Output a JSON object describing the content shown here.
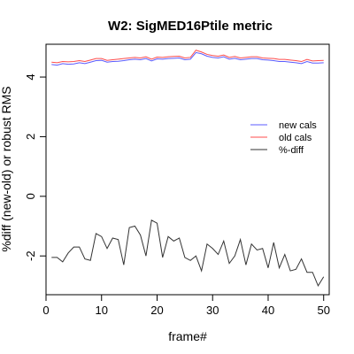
{
  "chart_data": {
    "type": "line",
    "title": "W2: SigMED16Ptile metric",
    "xlabel": "frame#",
    "ylabel": "%diff (new-old) or robust RMS",
    "xlim": [
      0,
      51
    ],
    "ylim": [
      -3.3,
      5.1
    ],
    "xticks": [
      0,
      10,
      20,
      30,
      40,
      50
    ],
    "yticks": [
      -2,
      0,
      2,
      4
    ],
    "grid": false,
    "legend_position": "right",
    "x": [
      1,
      2,
      3,
      4,
      5,
      6,
      7,
      8,
      9,
      10,
      11,
      12,
      13,
      14,
      15,
      16,
      17,
      18,
      19,
      20,
      21,
      22,
      23,
      24,
      25,
      26,
      27,
      28,
      29,
      30,
      31,
      32,
      33,
      34,
      35,
      36,
      37,
      38,
      39,
      40,
      41,
      42,
      43,
      44,
      45,
      46,
      47,
      48,
      49,
      50
    ],
    "series": [
      {
        "name": "new cals",
        "color": "#5b5bff",
        "values": [
          4.42,
          4.4,
          4.45,
          4.43,
          4.44,
          4.48,
          4.45,
          4.5,
          4.55,
          4.56,
          4.5,
          4.52,
          4.53,
          4.55,
          4.58,
          4.6,
          4.58,
          4.62,
          4.54,
          4.61,
          4.6,
          4.62,
          4.63,
          4.64,
          4.58,
          4.6,
          4.82,
          4.78,
          4.7,
          4.66,
          4.64,
          4.68,
          4.6,
          4.63,
          4.58,
          4.6,
          4.62,
          4.62,
          4.58,
          4.57,
          4.55,
          4.52,
          4.52,
          4.5,
          4.48,
          4.45,
          4.52,
          4.47,
          4.47,
          4.48
        ]
      },
      {
        "name": "old cals",
        "color": "#ff4d4d",
        "values": [
          4.5,
          4.48,
          4.52,
          4.51,
          4.52,
          4.55,
          4.52,
          4.57,
          4.62,
          4.62,
          4.56,
          4.58,
          4.6,
          4.62,
          4.64,
          4.66,
          4.64,
          4.68,
          4.6,
          4.67,
          4.66,
          4.68,
          4.69,
          4.7,
          4.64,
          4.66,
          4.9,
          4.84,
          4.76,
          4.72,
          4.7,
          4.74,
          4.66,
          4.69,
          4.64,
          4.66,
          4.68,
          4.68,
          4.64,
          4.63,
          4.62,
          4.59,
          4.59,
          4.57,
          4.55,
          4.52,
          4.59,
          4.54,
          4.55,
          4.56
        ]
      },
      {
        "name": "%-diff",
        "color": "#333333",
        "values": [
          -2.05,
          -2.05,
          -2.2,
          -1.9,
          -1.7,
          -1.7,
          -2.1,
          -2.15,
          -1.25,
          -1.35,
          -1.75,
          -1.4,
          -1.45,
          -2.3,
          -1.05,
          -1.0,
          -1.3,
          -2.0,
          -0.8,
          -0.9,
          -2.05,
          -1.35,
          -1.5,
          -1.4,
          -2.05,
          -2.15,
          -2.0,
          -2.5,
          -1.6,
          -1.75,
          -1.95,
          -1.5,
          -2.25,
          -2.0,
          -1.45,
          -2.3,
          -1.6,
          -1.8,
          -1.75,
          -2.4,
          -1.55,
          -2.4,
          -1.95,
          -2.5,
          -2.45,
          -2.1,
          -2.55,
          -2.55,
          -3.0,
          -2.7
        ]
      }
    ]
  }
}
